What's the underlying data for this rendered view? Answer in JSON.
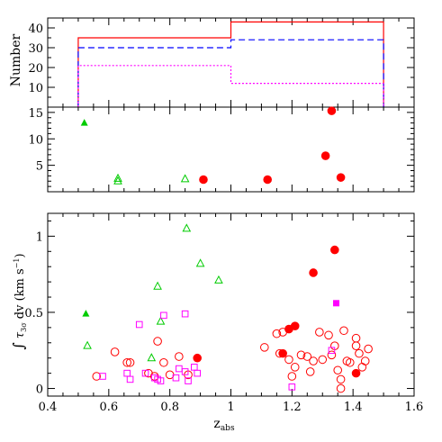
{
  "chart_data": [
    {
      "panel": "top",
      "type": "histogram",
      "ylabel": "Number",
      "xlim": [
        0.4,
        1.6
      ],
      "ylim": [
        0,
        45
      ],
      "yticks": [
        10,
        20,
        30,
        40
      ],
      "bin_edges": [
        0.5,
        1.0,
        1.5
      ],
      "series": [
        {
          "color": "#ff0000",
          "dash": "solid",
          "values": [
            35,
            43
          ]
        },
        {
          "color": "#0000ff",
          "dash": "dashed",
          "values": [
            30,
            34
          ]
        },
        {
          "color": "#ff00ff",
          "dash": "dotted",
          "values": [
            21,
            12
          ]
        }
      ]
    },
    {
      "panel": "middle",
      "type": "scatter",
      "xlim": [
        0.4,
        1.6
      ],
      "ylim": [
        0,
        16
      ],
      "yticks": [
        5,
        10,
        15
      ],
      "points": [
        {
          "x": 0.52,
          "y": 13.0,
          "marker": "triangle-filled",
          "color": "#00cc00"
        },
        {
          "x": 0.63,
          "y": 2.5,
          "marker": "triangle-open",
          "color": "#00cc00"
        },
        {
          "x": 0.63,
          "y": 2.0,
          "marker": "triangle-open",
          "color": "#00cc00"
        },
        {
          "x": 0.85,
          "y": 2.4,
          "marker": "triangle-open",
          "color": "#00cc00"
        },
        {
          "x": 0.91,
          "y": 2.3,
          "marker": "circle-filled",
          "color": "#ff0000"
        },
        {
          "x": 1.12,
          "y": 2.3,
          "marker": "circle-filled",
          "color": "#ff0000"
        },
        {
          "x": 1.31,
          "y": 6.8,
          "marker": "circle-filled",
          "color": "#ff0000"
        },
        {
          "x": 1.33,
          "y": 15.3,
          "marker": "circle-filled",
          "color": "#ff0000"
        },
        {
          "x": 1.36,
          "y": 2.7,
          "marker": "circle-filled",
          "color": "#ff0000"
        }
      ]
    },
    {
      "panel": "bottom",
      "type": "scatter",
      "xlabel": "z_abs",
      "xlim": [
        0.4,
        1.6
      ],
      "xticks": [
        0.4,
        0.6,
        0.8,
        1.0,
        1.2,
        1.4,
        1.6
      ],
      "ylabel": "∫ τ_3σ dv (km s⁻¹)",
      "ylim": [
        -0.05,
        1.15
      ],
      "yticks": [
        0,
        0.5,
        1
      ],
      "points": [
        {
          "x": 0.525,
          "y": 0.49,
          "marker": "triangle-filled",
          "color": "#00cc00"
        },
        {
          "x": 0.53,
          "y": 0.28,
          "marker": "triangle-open",
          "color": "#00cc00"
        },
        {
          "x": 0.74,
          "y": 0.2,
          "marker": "triangle-open",
          "color": "#00cc00"
        },
        {
          "x": 0.76,
          "y": 0.67,
          "marker": "triangle-open",
          "color": "#00cc00"
        },
        {
          "x": 0.77,
          "y": 0.44,
          "marker": "triangle-open",
          "color": "#00cc00"
        },
        {
          "x": 0.855,
          "y": 1.05,
          "marker": "triangle-open",
          "color": "#00cc00"
        },
        {
          "x": 0.9,
          "y": 0.82,
          "marker": "triangle-open",
          "color": "#00cc00"
        },
        {
          "x": 0.96,
          "y": 0.71,
          "marker": "triangle-open",
          "color": "#00cc00"
        },
        {
          "x": 0.89,
          "y": 0.2,
          "marker": "circle-filled",
          "color": "#ff0000"
        },
        {
          "x": 1.19,
          "y": 0.39,
          "marker": "circle-filled",
          "color": "#ff0000"
        },
        {
          "x": 1.21,
          "y": 0.41,
          "marker": "circle-filled",
          "color": "#ff0000"
        },
        {
          "x": 1.17,
          "y": 0.23,
          "marker": "circle-filled",
          "color": "#ff0000"
        },
        {
          "x": 1.27,
          "y": 0.76,
          "marker": "circle-filled",
          "color": "#ff0000"
        },
        {
          "x": 1.34,
          "y": 0.91,
          "marker": "circle-filled",
          "color": "#ff0000"
        },
        {
          "x": 1.41,
          "y": 0.1,
          "marker": "circle-filled",
          "color": "#ff0000"
        },
        {
          "x": 1.345,
          "y": 0.56,
          "marker": "square-filled",
          "color": "#ff00ff"
        },
        {
          "x": 0.56,
          "y": 0.08,
          "marker": "circle-open",
          "color": "#ff0000"
        },
        {
          "x": 0.62,
          "y": 0.24,
          "marker": "circle-open",
          "color": "#ff0000"
        },
        {
          "x": 0.66,
          "y": 0.17,
          "marker": "circle-open",
          "color": "#ff0000"
        },
        {
          "x": 0.67,
          "y": 0.17,
          "marker": "circle-open",
          "color": "#ff0000"
        },
        {
          "x": 0.73,
          "y": 0.1,
          "marker": "circle-open",
          "color": "#ff0000"
        },
        {
          "x": 0.75,
          "y": 0.08,
          "marker": "circle-open",
          "color": "#ff0000"
        },
        {
          "x": 0.76,
          "y": 0.31,
          "marker": "circle-open",
          "color": "#ff0000"
        },
        {
          "x": 0.78,
          "y": 0.17,
          "marker": "circle-open",
          "color": "#ff0000"
        },
        {
          "x": 0.8,
          "y": 0.09,
          "marker": "circle-open",
          "color": "#ff0000"
        },
        {
          "x": 0.83,
          "y": 0.21,
          "marker": "circle-open",
          "color": "#ff0000"
        },
        {
          "x": 0.86,
          "y": 0.09,
          "marker": "circle-open",
          "color": "#ff0000"
        },
        {
          "x": 1.11,
          "y": 0.27,
          "marker": "circle-open",
          "color": "#ff0000"
        },
        {
          "x": 1.15,
          "y": 0.36,
          "marker": "circle-open",
          "color": "#ff0000"
        },
        {
          "x": 1.16,
          "y": 0.23,
          "marker": "circle-open",
          "color": "#ff0000"
        },
        {
          "x": 1.17,
          "y": 0.37,
          "marker": "circle-open",
          "color": "#ff0000"
        },
        {
          "x": 1.19,
          "y": 0.19,
          "marker": "circle-open",
          "color": "#ff0000"
        },
        {
          "x": 1.2,
          "y": 0.08,
          "marker": "circle-open",
          "color": "#ff0000"
        },
        {
          "x": 1.21,
          "y": 0.14,
          "marker": "circle-open",
          "color": "#ff0000"
        },
        {
          "x": 1.23,
          "y": 0.22,
          "marker": "circle-open",
          "color": "#ff0000"
        },
        {
          "x": 1.25,
          "y": 0.21,
          "marker": "circle-open",
          "color": "#ff0000"
        },
        {
          "x": 1.26,
          "y": 0.11,
          "marker": "circle-open",
          "color": "#ff0000"
        },
        {
          "x": 1.27,
          "y": 0.18,
          "marker": "circle-open",
          "color": "#ff0000"
        },
        {
          "x": 1.29,
          "y": 0.37,
          "marker": "circle-open",
          "color": "#ff0000"
        },
        {
          "x": 1.3,
          "y": 0.19,
          "marker": "circle-open",
          "color": "#ff0000"
        },
        {
          "x": 1.32,
          "y": 0.35,
          "marker": "circle-open",
          "color": "#ff0000"
        },
        {
          "x": 1.33,
          "y": 0.22,
          "marker": "circle-open",
          "color": "#ff0000"
        },
        {
          "x": 1.34,
          "y": 0.28,
          "marker": "circle-open",
          "color": "#ff0000"
        },
        {
          "x": 1.35,
          "y": 0.12,
          "marker": "circle-open",
          "color": "#ff0000"
        },
        {
          "x": 1.36,
          "y": 0.06,
          "marker": "circle-open",
          "color": "#ff0000"
        },
        {
          "x": 1.36,
          "y": 0.0,
          "marker": "circle-open",
          "color": "#ff0000"
        },
        {
          "x": 1.37,
          "y": 0.38,
          "marker": "circle-open",
          "color": "#ff0000"
        },
        {
          "x": 1.38,
          "y": 0.18,
          "marker": "circle-open",
          "color": "#ff0000"
        },
        {
          "x": 1.39,
          "y": 0.17,
          "marker": "circle-open",
          "color": "#ff0000"
        },
        {
          "x": 1.41,
          "y": 0.33,
          "marker": "circle-open",
          "color": "#ff0000"
        },
        {
          "x": 1.42,
          "y": 0.23,
          "marker": "circle-open",
          "color": "#ff0000"
        },
        {
          "x": 1.43,
          "y": 0.14,
          "marker": "circle-open",
          "color": "#ff0000"
        },
        {
          "x": 1.44,
          "y": 0.18,
          "marker": "circle-open",
          "color": "#ff0000"
        },
        {
          "x": 1.45,
          "y": 0.26,
          "marker": "circle-open",
          "color": "#ff0000"
        },
        {
          "x": 1.41,
          "y": 0.28,
          "marker": "circle-open",
          "color": "#ff0000"
        },
        {
          "x": 0.58,
          "y": 0.08,
          "marker": "square-open",
          "color": "#ff00ff"
        },
        {
          "x": 0.66,
          "y": 0.1,
          "marker": "square-open",
          "color": "#ff00ff"
        },
        {
          "x": 0.67,
          "y": 0.06,
          "marker": "square-open",
          "color": "#ff00ff"
        },
        {
          "x": 0.7,
          "y": 0.42,
          "marker": "square-open",
          "color": "#ff00ff"
        },
        {
          "x": 0.72,
          "y": 0.1,
          "marker": "square-open",
          "color": "#ff00ff"
        },
        {
          "x": 0.75,
          "y": 0.07,
          "marker": "square-open",
          "color": "#ff00ff"
        },
        {
          "x": 0.76,
          "y": 0.06,
          "marker": "square-open",
          "color": "#ff00ff"
        },
        {
          "x": 0.77,
          "y": 0.05,
          "marker": "square-open",
          "color": "#ff00ff"
        },
        {
          "x": 0.78,
          "y": 0.48,
          "marker": "square-open",
          "color": "#ff00ff"
        },
        {
          "x": 0.82,
          "y": 0.07,
          "marker": "square-open",
          "color": "#ff00ff"
        },
        {
          "x": 0.83,
          "y": 0.13,
          "marker": "square-open",
          "color": "#ff00ff"
        },
        {
          "x": 0.85,
          "y": 0.49,
          "marker": "square-open",
          "color": "#ff00ff"
        },
        {
          "x": 0.85,
          "y": 0.11,
          "marker": "square-open",
          "color": "#ff00ff"
        },
        {
          "x": 0.86,
          "y": 0.05,
          "marker": "square-open",
          "color": "#ff00ff"
        },
        {
          "x": 0.88,
          "y": 0.14,
          "marker": "square-open",
          "color": "#ff00ff"
        },
        {
          "x": 0.89,
          "y": 0.1,
          "marker": "square-open",
          "color": "#ff00ff"
        },
        {
          "x": 1.2,
          "y": 0.01,
          "marker": "square-open",
          "color": "#ff00ff"
        },
        {
          "x": 1.33,
          "y": 0.25,
          "marker": "square-open",
          "color": "#ff00ff"
        }
      ]
    }
  ]
}
